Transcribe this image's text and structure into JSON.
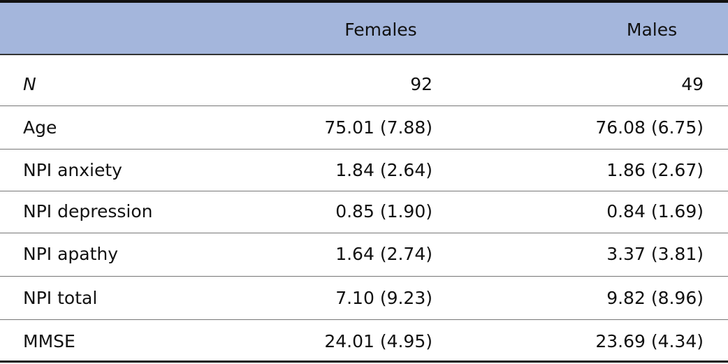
{
  "table": {
    "columns": [
      "Females",
      "Males"
    ],
    "rows": [
      [
        "N",
        "92",
        "49"
      ],
      [
        "Age",
        "75.01 (7.88)",
        "76.08 (6.75)"
      ],
      [
        "NPI anxiety",
        "1.84 (2.64)",
        "1.86 (2.67)"
      ],
      [
        "NPI depression",
        "0.85 (1.90)",
        "0.84 (1.69)"
      ],
      [
        "NPI apathy",
        "1.64 (2.74)",
        "3.37 (3.81)"
      ],
      [
        "NPI total",
        "7.10 (9.23)",
        "9.82 (8.96)"
      ],
      [
        "MMSE",
        "24.01 (4.95)",
        "23.69 (4.34)"
      ]
    ]
  }
}
